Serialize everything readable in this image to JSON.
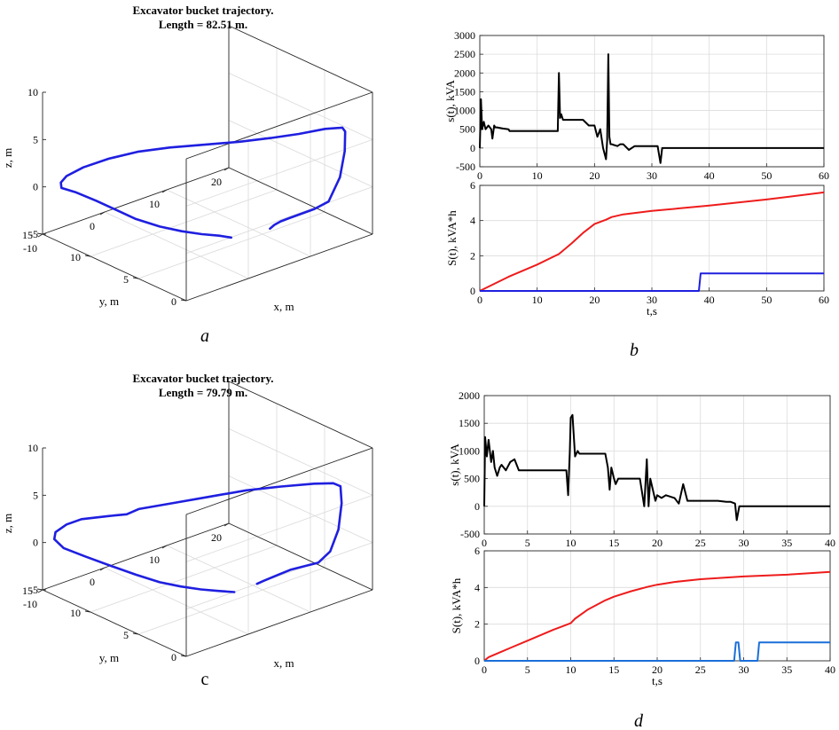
{
  "captions": {
    "a": "a",
    "b": "b",
    "c": "c",
    "d": "d"
  },
  "chart_data": [
    {
      "id": "a",
      "type": "line3d",
      "title_line1": "Excavator bucket trajectory.",
      "title_line2": "Length =  82.51 m.",
      "xlabel": "x, m",
      "ylabel": "y, m",
      "zlabel": "z, m",
      "xlim": [
        -10,
        20
      ],
      "ylim": [
        0,
        15
      ],
      "zlim": [
        -5,
        10
      ],
      "xticks": [
        -10,
        0,
        10,
        20
      ],
      "yticks": [
        0,
        5,
        10,
        15
      ],
      "zticks": [
        -5,
        0,
        5,
        10
      ],
      "grid": true,
      "series": [
        {
          "color": "#1f1fe0",
          "points": [
            [
              6.5,
              6.0,
              -5.0
            ],
            [
              5.0,
              6.3,
              -4.6
            ],
            [
              3.0,
              6.8,
              -4.2
            ],
            [
              1.0,
              7.6,
              -3.8
            ],
            [
              -1.0,
              8.6,
              -3.3
            ],
            [
              -3.0,
              9.8,
              -2.6
            ],
            [
              -4.5,
              10.9,
              -1.8
            ],
            [
              -6.0,
              12.0,
              -1.0
            ],
            [
              -7.5,
              13.2,
              -0.3
            ],
            [
              -8.5,
              14.0,
              0.0
            ],
            [
              -8.6,
              14.0,
              0.6
            ],
            [
              -8.3,
              13.6,
              1.4
            ],
            [
              -7.3,
              12.5,
              2.6
            ],
            [
              -5.5,
              11.0,
              3.8
            ],
            [
              -3.0,
              9.6,
              4.6
            ],
            [
              0.0,
              8.2,
              5.0
            ],
            [
              3.0,
              6.5,
              5.4
            ],
            [
              6.0,
              4.8,
              5.8
            ],
            [
              9.0,
              3.5,
              6.1
            ],
            [
              12.0,
              2.5,
              6.3
            ],
            [
              15.0,
              1.7,
              6.5
            ],
            [
              17.0,
              1.2,
              6.4
            ],
            [
              17.6,
              1.3,
              5.8
            ],
            [
              18.0,
              1.6,
              3.5
            ],
            [
              18.0,
              2.1,
              0.5
            ],
            [
              17.4,
              2.9,
              -2.3
            ],
            [
              16.5,
              3.8,
              -3.3
            ],
            [
              13.5,
              4.5,
              -3.9
            ],
            [
              12.3,
              4.6,
              -4.0
            ],
            [
              11.6,
              4.8,
              -4.3
            ],
            [
              11.2,
              5.0,
              -4.7
            ]
          ]
        }
      ]
    },
    {
      "id": "b",
      "type": "line",
      "subplots": [
        {
          "ylabel": "s(t), kVA",
          "xlim": [
            0,
            60
          ],
          "ylim": [
            -500,
            3000
          ],
          "xticks": [
            0,
            10,
            20,
            30,
            40,
            50,
            60
          ],
          "yticks": [
            -500,
            0,
            500,
            1000,
            1500,
            2000,
            2500,
            3000
          ],
          "grid": true,
          "series": [
            {
              "color": "#000000",
              "x": [
                0,
                0.2,
                0.4,
                0.7,
                1,
                1.5,
                2,
                2.2,
                2.5,
                2.7,
                3,
                4,
                5,
                5.2,
                6,
                8,
                10,
                12,
                13.6,
                13.8,
                14,
                14.2,
                14.5,
                15,
                16,
                17,
                18,
                19,
                20,
                20.5,
                21,
                21.5,
                22,
                22.2,
                22.4,
                22.6,
                22.8,
                23,
                23.4,
                24,
                24.5,
                25,
                26,
                27,
                28,
                29,
                30,
                31,
                31.5,
                31.8,
                32,
                33,
                35,
                40,
                45,
                50,
                55,
                60
              ],
              "y": [
                0,
                1300,
                500,
                700,
                500,
                600,
                500,
                250,
                600,
                550,
                550,
                520,
                500,
                450,
                450,
                450,
                450,
                450,
                450,
                2000,
                800,
                900,
                750,
                750,
                750,
                750,
                750,
                600,
                600,
                300,
                500,
                0,
                -300,
                200,
                2500,
                300,
                100,
                100,
                80,
                50,
                100,
                100,
                -50,
                50,
                50,
                50,
                50,
                50,
                -400,
                0,
                0,
                0,
                0,
                0,
                0,
                0,
                0,
                0
              ]
            }
          ]
        },
        {
          "ylabel": "S(t), kVA*h",
          "xlabel": "t,s",
          "xlim": [
            0,
            60
          ],
          "ylim": [
            0,
            6
          ],
          "xticks": [
            0,
            10,
            20,
            30,
            40,
            50,
            60
          ],
          "yticks": [
            0,
            2,
            4,
            6
          ],
          "grid": true,
          "series": [
            {
              "color": "#ee1c1c",
              "x": [
                0,
                5,
                10,
                13.8,
                16,
                18,
                20,
                22,
                23,
                25,
                30,
                35,
                40,
                50,
                60
              ],
              "y": [
                0,
                0.8,
                1.5,
                2.1,
                2.7,
                3.3,
                3.8,
                4.05,
                4.2,
                4.35,
                4.55,
                4.7,
                4.85,
                5.2,
                5.6
              ]
            },
            {
              "color": "#1f1fe0",
              "x": [
                0,
                38.2,
                38.5,
                60
              ],
              "y": [
                0,
                0,
                1,
                1
              ]
            }
          ]
        }
      ]
    },
    {
      "id": "c",
      "type": "line3d",
      "title_line1": "Excavator bucket trajectory.",
      "title_line2": "Length =  79.79 m.",
      "xlabel": "x, m",
      "ylabel": "y, m",
      "zlabel": "z, m",
      "xlim": [
        -10,
        20
      ],
      "ylim": [
        0,
        15
      ],
      "zlim": [
        -5,
        10
      ],
      "xticks": [
        -10,
        0,
        10,
        20
      ],
      "yticks": [
        0,
        5,
        10,
        15
      ],
      "zticks": [
        -5,
        0,
        5,
        10
      ],
      "grid": true,
      "series": [
        {
          "color": "#1f1fe0",
          "points": [
            [
              7.0,
              6.0,
              -5.0
            ],
            [
              5.0,
              6.4,
              -4.6
            ],
            [
              3.0,
              6.9,
              -4.2
            ],
            [
              1.0,
              7.7,
              -3.8
            ],
            [
              -1.0,
              8.6,
              -3.3
            ],
            [
              -3.0,
              9.8,
              -2.6
            ],
            [
              -5.0,
              11.0,
              -1.8
            ],
            [
              -7.0,
              12.5,
              -1.0
            ],
            [
              -8.6,
              13.7,
              -0.3
            ],
            [
              -9.2,
              14.3,
              0.5
            ],
            [
              -9.0,
              14.3,
              1.2
            ],
            [
              -8.0,
              13.8,
              2.0
            ],
            [
              -6.5,
              13.2,
              2.5
            ],
            [
              -4.0,
              12.0,
              2.8
            ],
            [
              -2.0,
              11.4,
              2.8
            ],
            [
              -1.0,
              10.8,
              3.4
            ],
            [
              2.0,
              9.0,
              4.2
            ],
            [
              5.0,
              7.2,
              5.0
            ],
            [
              8.0,
              5.4,
              5.8
            ],
            [
              11.0,
              3.7,
              6.3
            ],
            [
              14.0,
              2.2,
              6.6
            ],
            [
              16.0,
              1.5,
              6.5
            ],
            [
              17.0,
              1.4,
              6.0
            ],
            [
              17.5,
              1.6,
              4.0
            ],
            [
              17.6,
              2.0,
              1.0
            ],
            [
              17.2,
              2.6,
              -1.5
            ],
            [
              16.5,
              3.4,
              -2.9
            ],
            [
              14.0,
              4.6,
              -3.6
            ],
            [
              12.5,
              5.0,
              -4.0
            ],
            [
              11.0,
              5.5,
              -4.5
            ],
            [
              10.5,
              5.9,
              -4.9
            ]
          ]
        }
      ]
    },
    {
      "id": "d",
      "type": "line",
      "subplots": [
        {
          "ylabel": "s(t), kVA",
          "xlim": [
            0,
            40
          ],
          "ylim": [
            -500,
            2000
          ],
          "xticks": [
            0,
            5,
            10,
            15,
            20,
            25,
            30,
            35,
            40
          ],
          "yticks": [
            -500,
            0,
            500,
            1000,
            1500,
            2000
          ],
          "grid": true,
          "series": [
            {
              "color": "#000000",
              "x": [
                0,
                0.1,
                0.3,
                0.5,
                0.8,
                1,
                1.2,
                1.5,
                1.8,
                2,
                2.5,
                3,
                3.5,
                4,
                5,
                6,
                7,
                8,
                9,
                9.5,
                9.7,
                9.9,
                10,
                10.2,
                10.5,
                10.8,
                11,
                12,
                13,
                14,
                14.3,
                14.5,
                14.7,
                15,
                15.2,
                15.5,
                16,
                17,
                18,
                18.5,
                18.8,
                19,
                19.2,
                19.5,
                19.8,
                20,
                20.5,
                21,
                22,
                22.5,
                23,
                23.5,
                24,
                25,
                26,
                27,
                28,
                28.5,
                29,
                29.2,
                29.5,
                30,
                31,
                32,
                34,
                36,
                38,
                40
              ],
              "y": [
                0,
                1250,
                900,
                1200,
                800,
                1000,
                700,
                550,
                700,
                750,
                650,
                800,
                850,
                650,
                650,
                650,
                650,
                650,
                650,
                650,
                200,
                1000,
                1600,
                1650,
                900,
                1000,
                950,
                950,
                950,
                950,
                700,
                300,
                700,
                500,
                400,
                500,
                500,
                500,
                500,
                0,
                850,
                0,
                500,
                300,
                100,
                200,
                150,
                200,
                150,
                50,
                400,
                100,
                100,
                100,
                100,
                100,
                80,
                80,
                50,
                -250,
                0,
                0,
                0,
                0,
                0,
                0,
                0,
                0
              ]
            }
          ]
        },
        {
          "ylabel": "S(t), kVA*h",
          "xlabel": "t,s",
          "xlim": [
            0,
            40
          ],
          "ylim": [
            0,
            6
          ],
          "xticks": [
            0,
            5,
            10,
            15,
            20,
            25,
            30,
            35,
            40
          ],
          "yticks": [
            0,
            2,
            4,
            6
          ],
          "grid": true,
          "series": [
            {
              "color": "#ee1c1c",
              "x": [
                0,
                0.5,
                1,
                2,
                3,
                5,
                8,
                10,
                10.5,
                12,
                14,
                15,
                17,
                19,
                20,
                22,
                25,
                30,
                35,
                40
              ],
              "y": [
                0,
                0.2,
                0.3,
                0.5,
                0.7,
                1.1,
                1.7,
                2.05,
                2.3,
                2.8,
                3.3,
                3.5,
                3.8,
                4.05,
                4.15,
                4.3,
                4.45,
                4.6,
                4.7,
                4.85
              ]
            },
            {
              "color": "#1b6fd8",
              "x": [
                0,
                28.9,
                29.1,
                29.4,
                29.6,
                31.6,
                31.8,
                40
              ],
              "y": [
                0,
                0,
                1,
                1,
                0,
                0,
                1,
                1
              ]
            }
          ]
        }
      ]
    }
  ]
}
